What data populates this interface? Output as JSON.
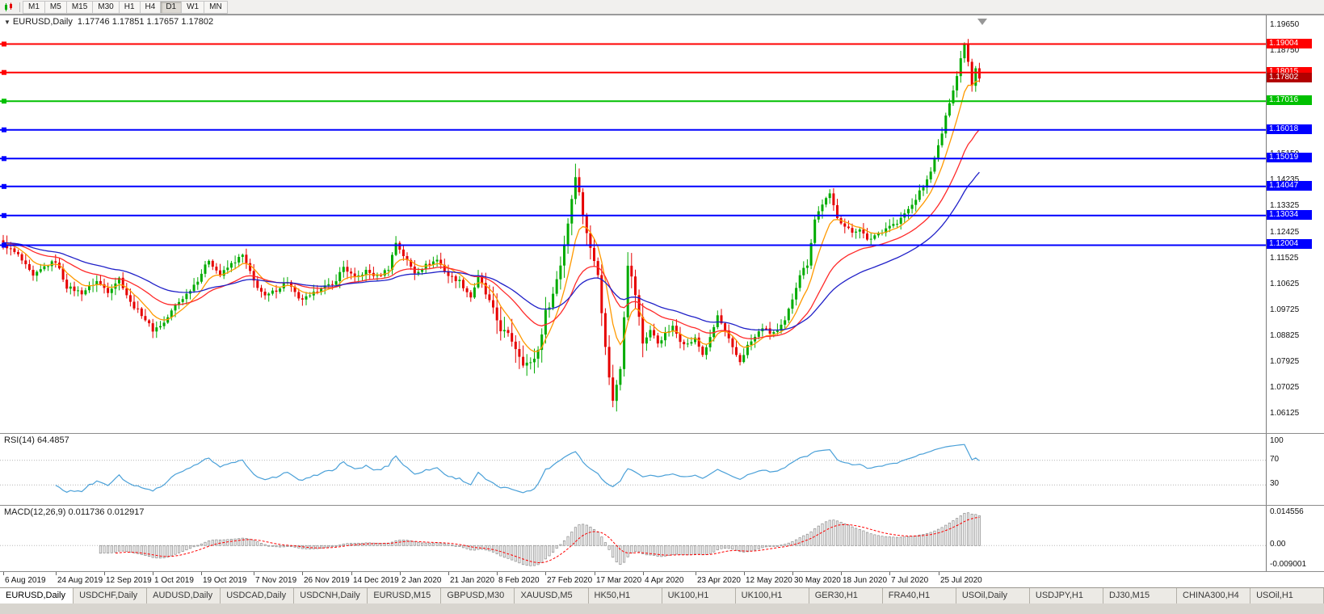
{
  "toolbar": {
    "timeframes": [
      "M1",
      "M5",
      "M15",
      "M30",
      "H1",
      "H4",
      "D1",
      "W1",
      "MN"
    ],
    "active_timeframe": "D1"
  },
  "chart": {
    "symbol_period": "EURUSD,Daily",
    "ohlc": "1.17746 1.17851 1.17657 1.17802"
  },
  "chart_data": {
    "type": "candlestick",
    "symbol": "EURUSD",
    "timeframe": "Daily",
    "open": 1.17746,
    "high": 1.17851,
    "low": 1.17657,
    "close": 1.17802,
    "current_price": 1.17802,
    "current_price_label": {
      "text": "1.17802",
      "color": "#b20000"
    },
    "price_range": {
      "max": 1.1975,
      "min": 1.0555
    },
    "price_axis_ticks": [
      "1.19650",
      "1.18750",
      "1.17850",
      "1.16950",
      "1.16050",
      "1.15150",
      "1.14235",
      "1.13325",
      "1.12425",
      "1.11525",
      "1.10625",
      "1.09725",
      "1.08825",
      "1.07925",
      "1.07025",
      "1.06125"
    ],
    "horizontal_lines": [
      {
        "price": 1.19004,
        "label": "1.19004",
        "color": "#ff0000"
      },
      {
        "price": 1.18015,
        "label": "1.18015",
        "color": "#ff0000"
      },
      {
        "price": 1.17016,
        "label": "1.17016",
        "color": "#00c000"
      },
      {
        "price": 1.16018,
        "label": "1.16018",
        "color": "#0000ff"
      },
      {
        "price": 1.15019,
        "label": "1.15019",
        "color": "#0000ff"
      },
      {
        "price": 1.14047,
        "label": "1.14047",
        "color": "#0000ff"
      },
      {
        "price": 1.13034,
        "label": "1.13034",
        "color": "#0000ff"
      },
      {
        "price": 1.12004,
        "label": "1.12004",
        "color": "#0000ff"
      }
    ],
    "bar_count": 262,
    "close_anchors": [
      [
        0,
        1.1205
      ],
      [
        4,
        1.1165
      ],
      [
        8,
        1.109
      ],
      [
        11,
        1.1125
      ],
      [
        14,
        1.1145
      ],
      [
        17,
        1.1055
      ],
      [
        21,
        1.1035
      ],
      [
        25,
        1.1075
      ],
      [
        28,
        1.104
      ],
      [
        31,
        1.1085
      ],
      [
        34,
        1.1
      ],
      [
        37,
        1.096
      ],
      [
        40,
        1.0905
      ],
      [
        43,
        1.093
      ],
      [
        46,
        1.099
      ],
      [
        49,
        1.103
      ],
      [
        52,
        1.108
      ],
      [
        55,
        1.115
      ],
      [
        58,
        1.1095
      ],
      [
        61,
        1.1135
      ],
      [
        64,
        1.1165
      ],
      [
        67,
        1.1075
      ],
      [
        70,
        1.102
      ],
      [
        73,
        1.1045
      ],
      [
        76,
        1.1075
      ],
      [
        79,
        1.101
      ],
      [
        82,
        1.102
      ],
      [
        85,
        1.1055
      ],
      [
        88,
        1.106
      ],
      [
        91,
        1.1125
      ],
      [
        94,
        1.1085
      ],
      [
        97,
        1.111
      ],
      [
        100,
        1.109
      ],
      [
        103,
        1.112
      ],
      [
        105,
        1.121
      ],
      [
        107,
        1.1165
      ],
      [
        110,
        1.1105
      ],
      [
        113,
        1.113
      ],
      [
        116,
        1.115
      ],
      [
        119,
        1.1095
      ],
      [
        122,
        1.1075
      ],
      [
        125,
        1.102
      ],
      [
        127,
        1.109
      ],
      [
        130,
        1.1
      ],
      [
        133,
        1.091
      ],
      [
        136,
        1.087
      ],
      [
        139,
        1.0795
      ],
      [
        141,
        1.0785
      ],
      [
        143,
        1.0835
      ],
      [
        145,
        1.0965
      ],
      [
        147,
        1.103
      ],
      [
        149,
        1.1135
      ],
      [
        151,
        1.128
      ],
      [
        153,
        1.145
      ],
      [
        155,
        1.131
      ],
      [
        157,
        1.1185
      ],
      [
        159,
        1.111
      ],
      [
        161,
        1.084
      ],
      [
        163,
        1.0655
      ],
      [
        165,
        1.078
      ],
      [
        167,
        1.114
      ],
      [
        169,
        1.103
      ],
      [
        171,
        1.086
      ],
      [
        173,
        1.0905
      ],
      [
        175,
        1.086
      ],
      [
        177,
        1.089
      ],
      [
        179,
        1.0915
      ],
      [
        181,
        1.087
      ],
      [
        183,
        1.0855
      ],
      [
        185,
        1.0875
      ],
      [
        187,
        1.082
      ],
      [
        189,
        1.0875
      ],
      [
        191,
        1.0955
      ],
      [
        193,
        1.09
      ],
      [
        195,
        1.084
      ],
      [
        197,
        1.0795
      ],
      [
        199,
        1.085
      ],
      [
        201,
        1.088
      ],
      [
        203,
        1.0915
      ],
      [
        205,
        1.0895
      ],
      [
        207,
        1.09
      ],
      [
        209,
        1.0935
      ],
      [
        211,
        1.1015
      ],
      [
        213,
        1.11
      ],
      [
        215,
        1.1135
      ],
      [
        217,
        1.129
      ],
      [
        219,
        1.1345
      ],
      [
        221,
        1.1375
      ],
      [
        223,
        1.13
      ],
      [
        225,
        1.1265
      ],
      [
        227,
        1.1245
      ],
      [
        229,
        1.126
      ],
      [
        231,
        1.1215
      ],
      [
        233,
        1.1235
      ],
      [
        235,
        1.125
      ],
      [
        237,
        1.127
      ],
      [
        239,
        1.1275
      ],
      [
        241,
        1.131
      ],
      [
        243,
        1.134
      ],
      [
        245,
        1.1385
      ],
      [
        247,
        1.1425
      ],
      [
        249,
        1.15
      ],
      [
        251,
        1.159
      ],
      [
        253,
        1.17
      ],
      [
        255,
        1.179
      ],
      [
        256,
        1.185
      ],
      [
        257,
        1.1908
      ],
      [
        258,
        1.184
      ],
      [
        259,
        1.176
      ],
      [
        260,
        1.182
      ],
      [
        261,
        1.17802
      ]
    ],
    "x_labels": [
      "6 Aug 2019",
      "24 Aug 2019",
      "12 Sep 2019",
      "1 Oct 2019",
      "19 Oct 2019",
      "7 Nov 2019",
      "26 Nov 2019",
      "14 Dec 2019",
      "2 Jan 2020",
      "21 Jan 2020",
      "8 Feb 2020",
      "27 Feb 2020",
      "17 Mar 2020",
      "4 Apr 2020",
      "23 Apr 2020",
      "12 May 2020",
      "30 May 2020",
      "18 Jun 2020",
      "7 Jul 2020",
      "25 Jul 2020"
    ],
    "x_label_bars": [
      0,
      14,
      27,
      40,
      53,
      67,
      80,
      93,
      106,
      119,
      132,
      145,
      158,
      171,
      185,
      198,
      211,
      224,
      237,
      250
    ],
    "candle_colors": {
      "bull": "#00ab00",
      "bear": "#e60000"
    },
    "moving_averages": [
      {
        "period": 8,
        "color": "#ff9900"
      },
      {
        "period": 24,
        "color": "#ff2a2a"
      },
      {
        "period": 45,
        "color": "#2020c8"
      }
    ],
    "rsi": {
      "title": "RSI(14) 64.4857",
      "period": 14,
      "value": 64.4857,
      "levels": [
        70,
        30
      ],
      "axis_labels": [
        "100",
        "70",
        "30"
      ],
      "line_color": "#4aa0d8"
    },
    "macd": {
      "title": "MACD(12,26,9) 0.011736 0.012917",
      "fast": 12,
      "slow": 26,
      "signal": 9,
      "macd_value": 0.011736,
      "signal_value": 0.012917,
      "axis_top": "0.014556",
      "axis_zero": "0.00",
      "axis_bottom": "-0.009001",
      "histogram_color": "#8c8c8c",
      "signal_color": "#ff0000"
    }
  },
  "tabs": {
    "items": [
      {
        "label": "EURUSD,Daily",
        "active": true
      },
      {
        "label": "USDCHF,Daily",
        "active": false
      },
      {
        "label": "AUDUSD,Daily",
        "active": false
      },
      {
        "label": "USDCAD,Daily",
        "active": false
      },
      {
        "label": "USDCNH,Daily",
        "active": false
      },
      {
        "label": "EURUSD,M15",
        "active": false
      },
      {
        "label": "GBPUSD,M30",
        "active": false
      },
      {
        "label": "XAUUSD,M5",
        "active": false
      },
      {
        "label": "HK50,H1",
        "active": false
      },
      {
        "label": "UK100,H1",
        "active": false
      },
      {
        "label": "UK100,H1",
        "active": false
      },
      {
        "label": "GER30,H1",
        "active": false
      },
      {
        "label": "FRA40,H1",
        "active": false
      },
      {
        "label": "USOil,Daily",
        "active": false
      },
      {
        "label": "USDJPY,H1",
        "active": false
      },
      {
        "label": "DJ30,M15",
        "active": false
      },
      {
        "label": "CHINA300,H4",
        "active": false
      },
      {
        "label": "USOil,H1",
        "active": false
      }
    ]
  }
}
